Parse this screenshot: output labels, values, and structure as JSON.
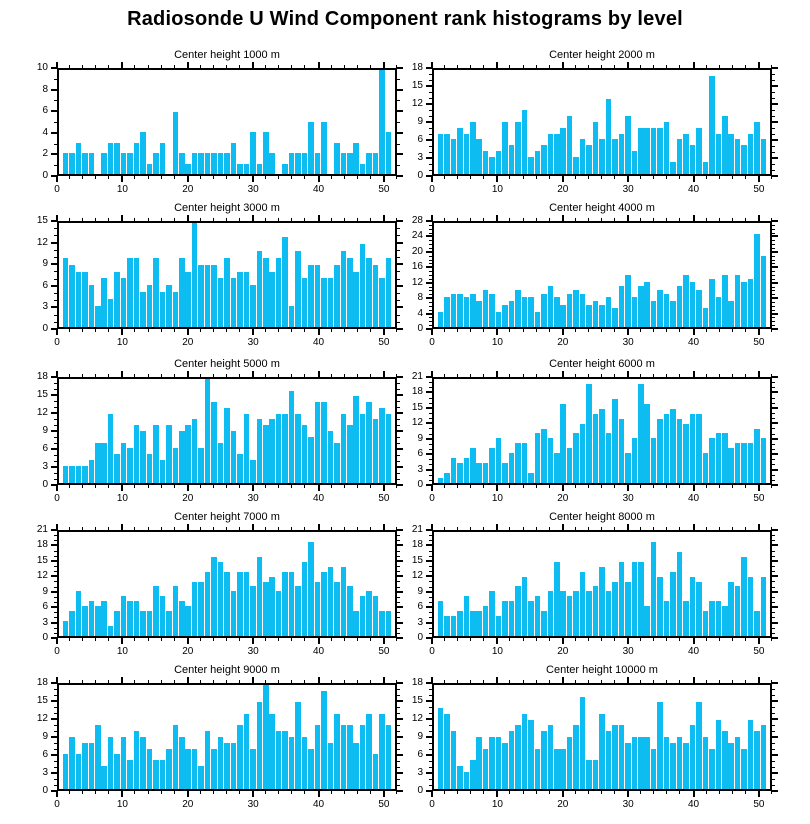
{
  "main_title": "Radiosonde U Wind Component rank histograms by level",
  "colors": {
    "bar": "#0dbdf2",
    "axis": "#000000",
    "background": "#ffffff",
    "text": "#000000"
  },
  "axis": {
    "xlim": [
      0,
      52
    ],
    "xticks": [
      0,
      10,
      20,
      30,
      40,
      50
    ],
    "x_minor_step": 2,
    "y_minor_step": 1,
    "x_start_bin": 1
  },
  "chart_data": [
    {
      "type": "bar",
      "title": "Center height 1000 m",
      "ylim": [
        0,
        10
      ],
      "ystep": 2,
      "values": [
        2,
        2,
        3,
        2,
        2,
        0,
        2,
        3,
        3,
        2,
        2,
        3,
        4,
        1,
        2,
        3,
        0,
        6,
        2,
        1,
        2,
        2,
        2,
        2,
        2,
        2,
        3,
        1,
        1,
        4,
        1,
        4,
        2,
        0,
        1,
        2,
        2,
        2,
        5,
        2,
        5,
        0,
        3,
        2,
        2,
        3,
        1,
        2,
        2,
        10,
        4
      ]
    },
    {
      "type": "bar",
      "title": "Center height 2000 m",
      "ylim": [
        0,
        18
      ],
      "ystep": 3,
      "values": [
        7,
        7,
        6,
        8,
        7,
        9,
        6,
        4,
        3,
        4,
        9,
        5,
        9,
        11,
        3,
        4,
        5,
        7,
        7,
        8,
        10,
        3,
        6,
        5,
        9,
        6,
        13,
        6,
        7,
        10,
        4,
        8,
        8,
        8,
        8,
        9,
        2,
        6,
        7,
        5,
        8,
        2,
        17,
        7,
        10,
        7,
        6,
        5,
        7,
        9,
        6
      ]
    },
    {
      "type": "bar",
      "title": "Center height 3000 m",
      "ylim": [
        0,
        15
      ],
      "ystep": 3,
      "values": [
        10,
        9,
        8,
        8,
        6,
        3,
        7,
        4,
        8,
        7,
        10,
        10,
        5,
        6,
        10,
        5,
        6,
        5,
        10,
        8,
        15,
        9,
        9,
        9,
        7,
        10,
        7,
        8,
        8,
        6,
        11,
        10,
        8,
        10,
        13,
        3,
        11,
        7,
        9,
        9,
        7,
        7,
        9,
        11,
        10,
        8,
        12,
        10,
        9,
        7,
        10
      ]
    },
    {
      "type": "bar",
      "title": "Center height 4000 m",
      "ylim": [
        0,
        28
      ],
      "ystep": 4,
      "values": [
        4,
        8,
        9,
        9,
        8,
        9,
        7,
        10,
        9,
        4,
        6,
        7,
        10,
        8,
        8,
        4,
        9,
        11,
        8,
        6,
        9,
        10,
        9,
        6,
        7,
        6,
        8,
        5,
        11,
        14,
        8,
        11,
        12,
        7,
        10,
        9,
        7,
        11,
        14,
        12,
        10,
        5,
        13,
        8,
        14,
        7,
        14,
        12,
        13,
        25,
        19
      ]
    },
    {
      "type": "bar",
      "title": "Center height 5000 m",
      "ylim": [
        0,
        18
      ],
      "ystep": 3,
      "values": [
        3,
        3,
        3,
        3,
        4,
        7,
        7,
        12,
        5,
        7,
        6,
        10,
        9,
        5,
        10,
        4,
        10,
        6,
        9,
        10,
        11,
        6,
        18,
        14,
        7,
        13,
        9,
        5,
        12,
        4,
        11,
        10,
        11,
        12,
        12,
        16,
        12,
        10,
        8,
        14,
        14,
        9,
        7,
        12,
        10,
        15,
        12,
        14,
        11,
        13,
        12
      ]
    },
    {
      "type": "bar",
      "title": "Center height 6000 m",
      "ylim": [
        0,
        21
      ],
      "ystep": 3,
      "values": [
        1,
        2,
        5,
        4,
        5,
        7,
        4,
        4,
        7,
        9,
        4,
        6,
        8,
        8,
        2,
        10,
        11,
        9,
        6,
        16,
        7,
        10,
        12,
        20,
        14,
        15,
        10,
        17,
        13,
        6,
        9,
        20,
        16,
        9,
        13,
        14,
        15,
        13,
        12,
        14,
        14,
        6,
        9,
        10,
        10,
        7,
        8,
        8,
        8,
        11,
        9
      ]
    },
    {
      "type": "bar",
      "title": "Center height 7000 m",
      "ylim": [
        0,
        21
      ],
      "ystep": 3,
      "values": [
        3,
        5,
        9,
        6,
        7,
        6,
        7,
        2,
        5,
        8,
        7,
        7,
        5,
        5,
        10,
        8,
        5,
        10,
        7,
        6,
        11,
        11,
        13,
        16,
        15,
        13,
        9,
        13,
        13,
        10,
        16,
        11,
        12,
        9,
        13,
        13,
        10,
        15,
        19,
        11,
        13,
        14,
        11,
        14,
        10,
        5,
        8,
        9,
        8,
        5,
        5
      ]
    },
    {
      "type": "bar",
      "title": "Center height 8000 m",
      "ylim": [
        0,
        21
      ],
      "ystep": 3,
      "values": [
        7,
        4,
        4,
        5,
        8,
        5,
        5,
        6,
        9,
        4,
        7,
        7,
        10,
        12,
        7,
        8,
        5,
        9,
        15,
        9,
        8,
        9,
        13,
        9,
        10,
        14,
        9,
        11,
        15,
        11,
        15,
        15,
        6,
        19,
        12,
        7,
        13,
        17,
        7,
        12,
        11,
        5,
        7,
        7,
        6,
        11,
        10,
        16,
        12,
        5,
        12
      ]
    },
    {
      "type": "bar",
      "title": "Center height 9000 m",
      "ylim": [
        0,
        18
      ],
      "ystep": 3,
      "values": [
        6,
        9,
        6,
        8,
        8,
        11,
        4,
        9,
        6,
        9,
        5,
        10,
        9,
        7,
        5,
        5,
        7,
        11,
        9,
        7,
        7,
        4,
        10,
        7,
        9,
        8,
        8,
        11,
        13,
        7,
        15,
        18,
        13,
        10,
        10,
        9,
        15,
        9,
        7,
        11,
        17,
        8,
        13,
        11,
        11,
        8,
        11,
        13,
        6,
        13,
        11
      ]
    },
    {
      "type": "bar",
      "title": "Center height 10000 m",
      "ylim": [
        0,
        18
      ],
      "ystep": 3,
      "values": [
        14,
        13,
        10,
        4,
        3,
        5,
        9,
        7,
        9,
        9,
        8,
        10,
        11,
        13,
        12,
        7,
        10,
        11,
        7,
        7,
        9,
        11,
        16,
        5,
        5,
        13,
        10,
        11,
        11,
        8,
        9,
        9,
        9,
        7,
        15,
        9,
        8,
        9,
        8,
        11,
        15,
        9,
        7,
        12,
        10,
        8,
        9,
        7,
        12,
        10,
        11
      ]
    }
  ]
}
